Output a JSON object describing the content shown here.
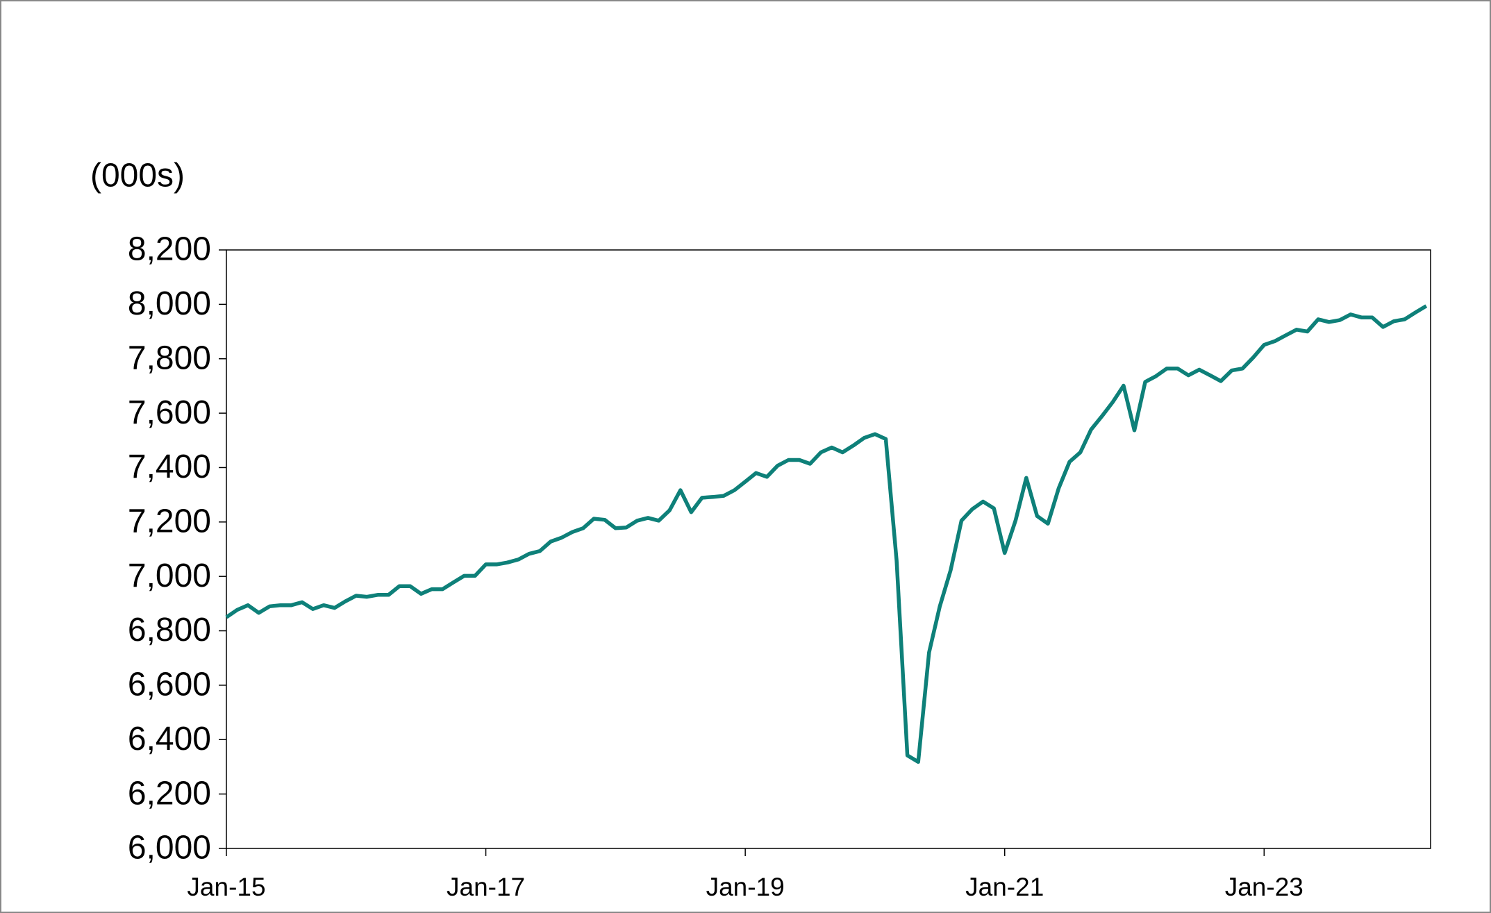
{
  "chart_data": {
    "type": "line",
    "unit_label": "(000s)",
    "categories": [
      "Jan-15",
      null,
      null,
      null,
      null,
      null,
      null,
      null,
      null,
      null,
      null,
      null,
      null,
      null,
      null,
      null,
      null,
      null,
      null,
      null,
      null,
      null,
      null,
      null,
      "Jan-17",
      null,
      null,
      null,
      null,
      null,
      null,
      null,
      null,
      null,
      null,
      null,
      null,
      null,
      null,
      null,
      null,
      null,
      null,
      null,
      null,
      null,
      null,
      null,
      "Jan-19",
      null,
      null,
      null,
      null,
      null,
      null,
      null,
      null,
      null,
      null,
      null,
      null,
      null,
      null,
      null,
      null,
      null,
      null,
      null,
      null,
      null,
      null,
      null,
      "Jan-21",
      null,
      null,
      null,
      null,
      null,
      null,
      null,
      null,
      null,
      null,
      null,
      null,
      null,
      null,
      null,
      null,
      null,
      null,
      null,
      null,
      null,
      null,
      null,
      "Jan-23",
      null,
      null,
      null,
      null,
      null,
      null,
      null,
      null,
      null,
      null,
      null,
      null,
      null,
      null,
      null
    ],
    "values": [
      6850,
      6877,
      6894,
      6866,
      6890,
      6894,
      6894,
      6905,
      6880,
      6894,
      6884,
      6908,
      6929,
      6925,
      6932,
      6932,
      6964,
      6964,
      6936,
      6953,
      6953,
      6978,
      7002,
      7002,
      7044,
      7044,
      7051,
      7062,
      7083,
      7093,
      7128,
      7142,
      7163,
      7177,
      7212,
      7208,
      7177,
      7180,
      7205,
      7215,
      7205,
      7243,
      7317,
      7236,
      7289,
      7292,
      7296,
      7317,
      7348,
      7380,
      7366,
      7407,
      7428,
      7428,
      7414,
      7456,
      7474,
      7456,
      7481,
      7509,
      7523,
      7505,
      7058,
      6342,
      6318,
      6720,
      6890,
      7023,
      7205,
      7247,
      7275,
      7250,
      7086,
      7205,
      7362,
      7222,
      7194,
      7324,
      7421,
      7456,
      7540,
      7589,
      7641,
      7701,
      7537,
      7715,
      7736,
      7764,
      7764,
      7739,
      7760,
      7739,
      7718,
      7757,
      7764,
      7805,
      7851,
      7865,
      7886,
      7907,
      7900,
      7945,
      7935,
      7942,
      7963,
      7952,
      7952,
      7917,
      7938,
      7945,
      7970,
      7994
    ],
    "color": "#0e8079",
    "ylim": [
      6000,
      8200
    ],
    "yticks": [
      {
        "value": 6000,
        "label": "6,000"
      },
      {
        "value": 6200,
        "label": "6,200"
      },
      {
        "value": 6400,
        "label": "6,400"
      },
      {
        "value": 6600,
        "label": "6,600"
      },
      {
        "value": 6800,
        "label": "6,800"
      },
      {
        "value": 7000,
        "label": "7,000"
      },
      {
        "value": 7200,
        "label": "7,200"
      },
      {
        "value": 7400,
        "label": "7,400"
      },
      {
        "value": 7600,
        "label": "7,600"
      },
      {
        "value": 7800,
        "label": "7,800"
      },
      {
        "value": 8000,
        "label": "8,000"
      },
      {
        "value": 8200,
        "label": "8,200"
      }
    ],
    "grid": false
  }
}
